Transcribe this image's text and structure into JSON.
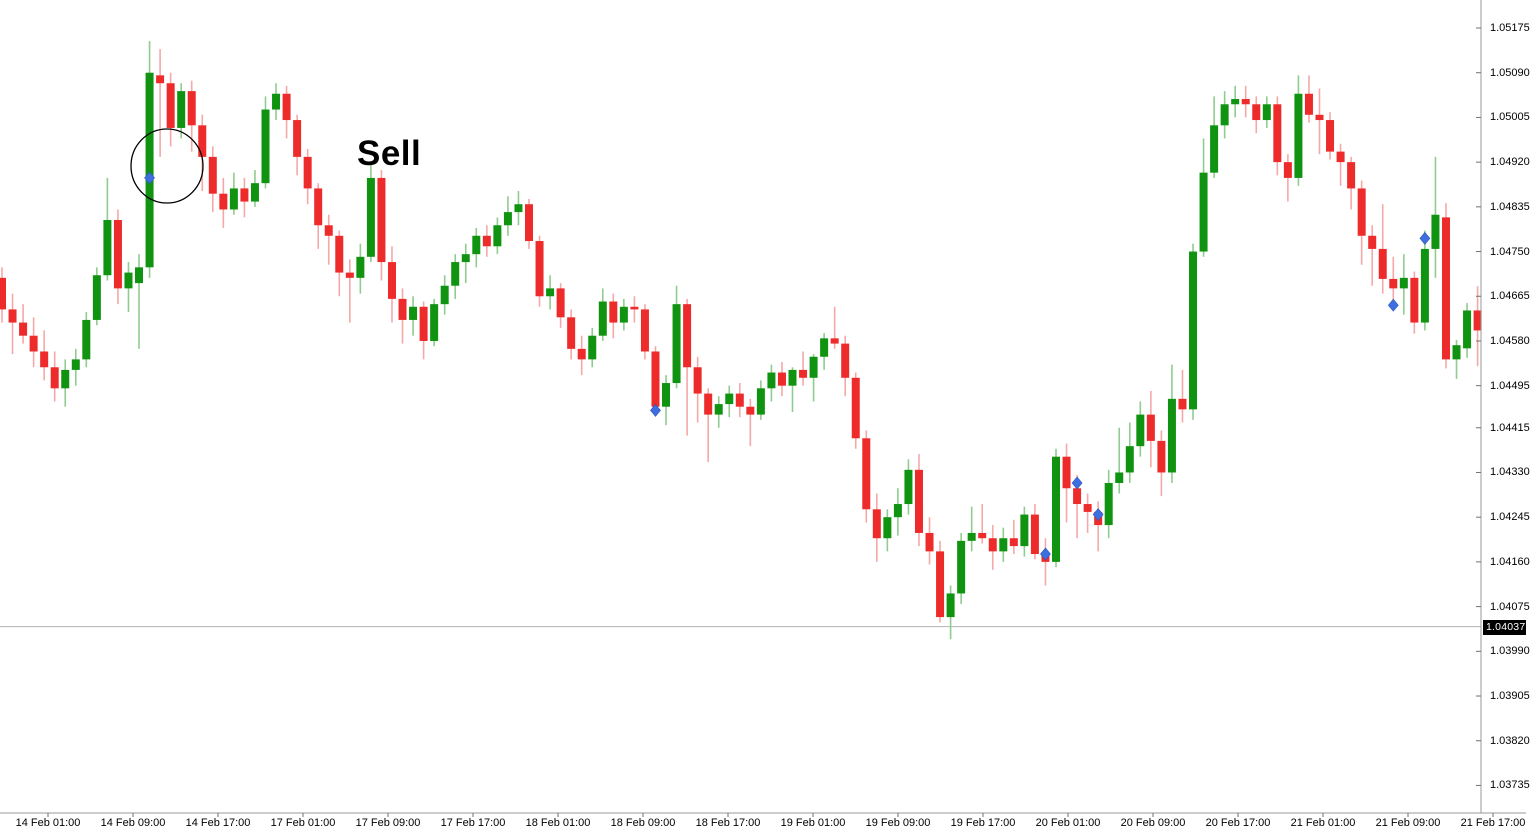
{
  "chart_data": {
    "type": "candlestick",
    "x_axis_labels": [
      "14 Feb 01:00",
      "14 Feb 09:00",
      "14 Feb 17:00",
      "17 Feb 01:00",
      "17 Feb 09:00",
      "17 Feb 17:00",
      "18 Feb 01:00",
      "18 Feb 09:00",
      "18 Feb 17:00",
      "19 Feb 01:00",
      "19 Feb 09:00",
      "19 Feb 17:00",
      "20 Feb 01:00",
      "20 Feb 09:00",
      "20 Feb 17:00",
      "21 Feb 01:00",
      "21 Feb 09:00",
      "21 Feb 17:00"
    ],
    "y_axis_labels": [
      "1.05175",
      "1.05090",
      "1.05005",
      "1.04920",
      "1.04835",
      "1.04750",
      "1.04665",
      "1.04580",
      "1.04495",
      "1.04415",
      "1.04330",
      "1.04245",
      "1.04160",
      "1.04075",
      "1.03990",
      "1.03905",
      "1.03820",
      "1.03735"
    ],
    "ylim": [
      1.037,
      1.0523
    ],
    "price_line": {
      "label": "1.04037",
      "value": 1.04037
    },
    "annotations": {
      "sell": {
        "text": "Sell",
        "x": 357,
        "y": 134
      },
      "circle": {
        "cx": 167,
        "cy": 166,
        "rx": 36,
        "ry": 37
      }
    },
    "markers": [
      {
        "index": 14,
        "price": 1.0489
      },
      {
        "index": 62,
        "price": 1.04448
      },
      {
        "index": 99,
        "price": 1.04175
      },
      {
        "index": 102,
        "price": 1.0431
      },
      {
        "index": 104,
        "price": 1.0425
      },
      {
        "index": 132,
        "price": 1.04648
      },
      {
        "index": 135,
        "price": 1.04775
      }
    ],
    "candles": [
      [
        1.047,
        1.0472,
        1.04615,
        1.0464
      ],
      [
        1.0464,
        1.0467,
        1.04555,
        1.04615
      ],
      [
        1.04615,
        1.0465,
        1.04575,
        1.0459
      ],
      [
        1.0459,
        1.04625,
        1.0453,
        1.0456
      ],
      [
        1.0456,
        1.046,
        1.04505,
        1.0453
      ],
      [
        1.0453,
        1.0456,
        1.04465,
        1.0449
      ],
      [
        1.0449,
        1.04545,
        1.04455,
        1.04525
      ],
      [
        1.04525,
        1.04565,
        1.04495,
        1.04545
      ],
      [
        1.04545,
        1.04635,
        1.0453,
        1.0462
      ],
      [
        1.0462,
        1.0472,
        1.0461,
        1.04705
      ],
      [
        1.04705,
        1.0489,
        1.04695,
        1.0481
      ],
      [
        1.0481,
        1.0483,
        1.0465,
        1.0468
      ],
      [
        1.0468,
        1.0473,
        1.04635,
        1.0471
      ],
      [
        1.0469,
        1.04745,
        1.04565,
        1.0472
      ],
      [
        1.0472,
        1.0515,
        1.047,
        1.0509
      ],
      [
        1.05085,
        1.05135,
        1.0493,
        1.0507
      ],
      [
        1.0507,
        1.0509,
        1.0495,
        1.04985
      ],
      [
        1.04985,
        1.0507,
        1.04965,
        1.05055
      ],
      [
        1.05055,
        1.05075,
        1.0494,
        1.0499
      ],
      [
        1.0499,
        1.0501,
        1.04865,
        1.0493
      ],
      [
        1.0493,
        1.0495,
        1.04825,
        1.0486
      ],
      [
        1.0486,
        1.0489,
        1.04795,
        1.0483
      ],
      [
        1.0483,
        1.049,
        1.0482,
        1.0487
      ],
      [
        1.0487,
        1.0489,
        1.04815,
        1.04845
      ],
      [
        1.04845,
        1.04905,
        1.04835,
        1.0488
      ],
      [
        1.0488,
        1.05045,
        1.0487,
        1.0502
      ],
      [
        1.0502,
        1.0507,
        1.05,
        1.0505
      ],
      [
        1.0505,
        1.05065,
        1.04965,
        1.05
      ],
      [
        1.05,
        1.0501,
        1.04895,
        1.0493
      ],
      [
        1.0493,
        1.04945,
        1.0484,
        1.0487
      ],
      [
        1.0487,
        1.0488,
        1.04755,
        1.048
      ],
      [
        1.048,
        1.0482,
        1.04725,
        1.0478
      ],
      [
        1.0478,
        1.0479,
        1.04665,
        1.0471
      ],
      [
        1.0471,
        1.04735,
        1.04615,
        1.047
      ],
      [
        1.047,
        1.04765,
        1.0467,
        1.0474
      ],
      [
        1.0474,
        1.04915,
        1.0473,
        1.0489
      ],
      [
        1.0489,
        1.04905,
        1.04695,
        1.0473
      ],
      [
        1.0473,
        1.0476,
        1.04615,
        1.0466
      ],
      [
        1.0466,
        1.0468,
        1.04575,
        1.0462
      ],
      [
        1.0462,
        1.04665,
        1.0459,
        1.04645
      ],
      [
        1.04645,
        1.04655,
        1.04545,
        1.0458
      ],
      [
        1.0458,
        1.0466,
        1.0457,
        1.0465
      ],
      [
        1.0465,
        1.04705,
        1.0463,
        1.04685
      ],
      [
        1.04685,
        1.04745,
        1.0466,
        1.0473
      ],
      [
        1.0473,
        1.04765,
        1.0469,
        1.04745
      ],
      [
        1.04745,
        1.04795,
        1.0472,
        1.0478
      ],
      [
        1.0478,
        1.048,
        1.0474,
        1.0476
      ],
      [
        1.0476,
        1.04815,
        1.04745,
        1.048
      ],
      [
        1.048,
        1.04855,
        1.0478,
        1.04825
      ],
      [
        1.04825,
        1.04865,
        1.048,
        1.0484
      ],
      [
        1.0484,
        1.0485,
        1.04755,
        1.0477
      ],
      [
        1.0477,
        1.0478,
        1.04645,
        1.04665
      ],
      [
        1.04665,
        1.04705,
        1.0464,
        1.0468
      ],
      [
        1.0468,
        1.0469,
        1.04605,
        1.04625
      ],
      [
        1.04625,
        1.0464,
        1.04545,
        1.04565
      ],
      [
        1.04565,
        1.0459,
        1.04515,
        1.04545
      ],
      [
        1.04545,
        1.04605,
        1.0453,
        1.0459
      ],
      [
        1.0459,
        1.0468,
        1.0458,
        1.04655
      ],
      [
        1.04655,
        1.0467,
        1.04585,
        1.04615
      ],
      [
        1.04615,
        1.0466,
        1.046,
        1.04645
      ],
      [
        1.04645,
        1.04665,
        1.04615,
        1.0464
      ],
      [
        1.0464,
        1.0465,
        1.04545,
        1.0456
      ],
      [
        1.0456,
        1.0457,
        1.0444,
        1.04455
      ],
      [
        1.04455,
        1.04515,
        1.0442,
        1.045
      ],
      [
        1.045,
        1.04685,
        1.0449,
        1.0465
      ],
      [
        1.0465,
        1.0466,
        1.044,
        1.0453
      ],
      [
        1.0453,
        1.0455,
        1.04425,
        1.0448
      ],
      [
        1.0448,
        1.0449,
        1.0435,
        1.0444
      ],
      [
        1.0444,
        1.04475,
        1.04415,
        1.0446
      ],
      [
        1.0446,
        1.04495,
        1.04435,
        1.0448
      ],
      [
        1.0448,
        1.045,
        1.04435,
        1.04455
      ],
      [
        1.04455,
        1.0447,
        1.0438,
        1.0444
      ],
      [
        1.0444,
        1.04505,
        1.0443,
        1.0449
      ],
      [
        1.0449,
        1.04535,
        1.04465,
        1.0452
      ],
      [
        1.0452,
        1.0454,
        1.04475,
        1.04495
      ],
      [
        1.04495,
        1.0453,
        1.04445,
        1.04525
      ],
      [
        1.04525,
        1.0456,
        1.04495,
        1.0451
      ],
      [
        1.0451,
        1.04555,
        1.04465,
        1.0455
      ],
      [
        1.0455,
        1.04595,
        1.04525,
        1.04585
      ],
      [
        1.04585,
        1.04645,
        1.04565,
        1.04575
      ],
      [
        1.04575,
        1.0459,
        1.04475,
        1.0451
      ],
      [
        1.0451,
        1.0452,
        1.04375,
        1.04395
      ],
      [
        1.04395,
        1.0441,
        1.04235,
        1.0426
      ],
      [
        1.0426,
        1.0429,
        1.0416,
        1.04205
      ],
      [
        1.04205,
        1.0426,
        1.0418,
        1.04245
      ],
      [
        1.04245,
        1.043,
        1.0421,
        1.0427
      ],
      [
        1.0427,
        1.04355,
        1.0425,
        1.04335
      ],
      [
        1.04335,
        1.04365,
        1.0419,
        1.04215
      ],
      [
        1.04215,
        1.04245,
        1.04155,
        1.0418
      ],
      [
        1.0418,
        1.042,
        1.04045,
        1.04055
      ],
      [
        1.04055,
        1.04115,
        1.04013,
        1.041
      ],
      [
        1.041,
        1.04215,
        1.0408,
        1.042
      ],
      [
        1.042,
        1.04265,
        1.0418,
        1.04215
      ],
      [
        1.04215,
        1.0427,
        1.04195,
        1.04205
      ],
      [
        1.04205,
        1.0423,
        1.04145,
        1.0418
      ],
      [
        1.0418,
        1.04225,
        1.0416,
        1.04205
      ],
      [
        1.04205,
        1.0424,
        1.04175,
        1.0419
      ],
      [
        1.0419,
        1.04265,
        1.0417,
        1.0425
      ],
      [
        1.0425,
        1.0427,
        1.04165,
        1.04175
      ],
      [
        1.04175,
        1.04205,
        1.04115,
        1.0416
      ],
      [
        1.0416,
        1.04375,
        1.0415,
        1.0436
      ],
      [
        1.0436,
        1.04385,
        1.04235,
        1.043
      ],
      [
        1.043,
        1.04325,
        1.04205,
        1.0427
      ],
      [
        1.0427,
        1.0429,
        1.04215,
        1.04255
      ],
      [
        1.04255,
        1.04275,
        1.0418,
        1.0423
      ],
      [
        1.0423,
        1.04335,
        1.04205,
        1.0431
      ],
      [
        1.0431,
        1.04415,
        1.0429,
        1.0433
      ],
      [
        1.0433,
        1.04425,
        1.0431,
        1.0438
      ],
      [
        1.0438,
        1.04465,
        1.0436,
        1.0444
      ],
      [
        1.0444,
        1.04485,
        1.0434,
        1.0439
      ],
      [
        1.0439,
        1.0441,
        1.04285,
        1.0433
      ],
      [
        1.0433,
        1.04535,
        1.0431,
        1.0447
      ],
      [
        1.0447,
        1.04525,
        1.04425,
        1.0445
      ],
      [
        1.0445,
        1.04765,
        1.0443,
        1.0475
      ],
      [
        1.0475,
        1.04965,
        1.0474,
        1.049
      ],
      [
        1.049,
        1.05045,
        1.0489,
        1.0499
      ],
      [
        1.0499,
        1.05055,
        1.04965,
        1.0503
      ],
      [
        1.0503,
        1.05065,
        1.05005,
        1.0504
      ],
      [
        1.0504,
        1.05065,
        1.05005,
        1.0503
      ],
      [
        1.0503,
        1.05045,
        1.04975,
        1.05
      ],
      [
        1.05,
        1.05045,
        1.04985,
        1.0503
      ],
      [
        1.0503,
        1.05045,
        1.04895,
        1.0492
      ],
      [
        1.0492,
        1.04935,
        1.04845,
        1.0489
      ],
      [
        1.0489,
        1.05085,
        1.04875,
        1.0505
      ],
      [
        1.0505,
        1.05085,
        1.04995,
        1.0501
      ],
      [
        1.0501,
        1.0506,
        1.04935,
        1.05
      ],
      [
        1.05,
        1.05015,
        1.04925,
        1.0494
      ],
      [
        1.0494,
        1.04955,
        1.04875,
        1.0492
      ],
      [
        1.0492,
        1.0493,
        1.0483,
        1.0487
      ],
      [
        1.0487,
        1.04885,
        1.04725,
        1.0478
      ],
      [
        1.0478,
        1.048,
        1.04685,
        1.04755
      ],
      [
        1.04755,
        1.0484,
        1.0467,
        1.04698
      ],
      [
        1.04698,
        1.0474,
        1.04648,
        1.0468
      ],
      [
        1.0468,
        1.04745,
        1.0463,
        1.047
      ],
      [
        1.047,
        1.04712,
        1.04594,
        1.04615
      ],
      [
        1.04615,
        1.0479,
        1.046,
        1.04755
      ],
      [
        1.04755,
        1.0493,
        1.047,
        1.0482
      ],
      [
        1.04815,
        1.04842,
        1.04528,
        1.04545
      ],
      [
        1.04545,
        1.04582,
        1.04508,
        1.04572
      ],
      [
        1.04566,
        1.04652,
        1.04548,
        1.04638
      ],
      [
        1.04638,
        1.04684,
        1.04532,
        1.046
      ]
    ],
    "colors": {
      "up": "#109310",
      "down": "#ee2b2b",
      "up_wick": "#8fcc8f",
      "down_wick": "#f5a8a8",
      "marker": "#3e6fe0",
      "marker_edge": "#2f55b8",
      "axis_line": "#9a9a9a",
      "tick": "#707070",
      "price_line": "#b3b3b3",
      "badge_bg": "#000000",
      "badge_text": "#ffffff",
      "annotation": "#000000"
    }
  }
}
